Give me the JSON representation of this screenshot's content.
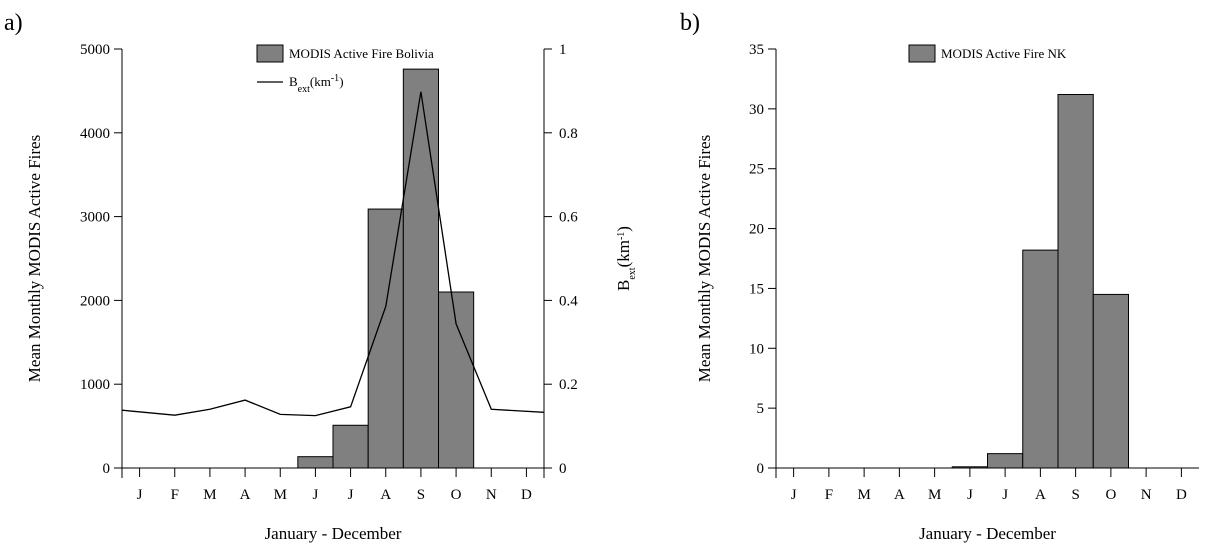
{
  "figure": {
    "panels": [
      "a)",
      "b)"
    ]
  },
  "chart_data": [
    {
      "type": "bar",
      "panel_label": "a)",
      "categories": [
        "J",
        "F",
        "M",
        "A",
        "M",
        "J",
        "J",
        "A",
        "S",
        "O",
        "N",
        "D"
      ],
      "series": [
        {
          "name": "MODIS Active Fire Bolivia",
          "kind": "bar",
          "axis": "left",
          "color": "#808080",
          "values": [
            0,
            0,
            0,
            0,
            0,
            135,
            510,
            3090,
            4760,
            2100,
            0,
            0
          ]
        },
        {
          "name": "B(km)",
          "kind": "line",
          "axis": "right",
          "color": "#000000",
          "values": [
            0.138,
            0.126,
            0.14,
            0.162,
            0.128,
            0.125,
            0.146,
            0.386,
            0.898,
            0.344,
            0.14,
            0.133
          ]
        }
      ],
      "legend_line_label": {
        "main": "B",
        "sub": "ext",
        "unit_open": "(km",
        "sup": "-1",
        "unit_close": ")"
      },
      "xlabel": "January - December",
      "ylabel": "Mean Monthly MODIS Active Fires",
      "ylabel_right": {
        "main": "B",
        "sub": "ext",
        "unit_open": "(km",
        "sup": "-1",
        "unit_close": ")"
      },
      "ylim": [
        0,
        5000
      ],
      "yticks": [
        0,
        1000,
        2000,
        3000,
        4000,
        5000
      ],
      "ylim_right": [
        0,
        1
      ],
      "yticks_right": [
        "0",
        "0.2",
        "0.4",
        "0.6",
        "0.8",
        "1"
      ],
      "legend_position": "top-center",
      "grid": false
    },
    {
      "type": "bar",
      "panel_label": "b)",
      "categories": [
        "J",
        "F",
        "M",
        "A",
        "M",
        "J",
        "J",
        "A",
        "S",
        "O",
        "N",
        "D"
      ],
      "series": [
        {
          "name": "MODIS Active Fire NK",
          "kind": "bar",
          "axis": "left",
          "color": "#808080",
          "values": [
            0,
            0,
            0,
            0,
            0,
            0.1,
            1.2,
            18.2,
            31.2,
            14.5,
            0,
            0
          ]
        }
      ],
      "xlabel": "January - December",
      "ylabel": "Mean Monthly MODIS Active Fires",
      "ylim": [
        0,
        35
      ],
      "yticks": [
        0,
        5,
        10,
        15,
        20,
        25,
        30,
        35
      ],
      "legend_position": "top-center",
      "grid": false
    }
  ]
}
